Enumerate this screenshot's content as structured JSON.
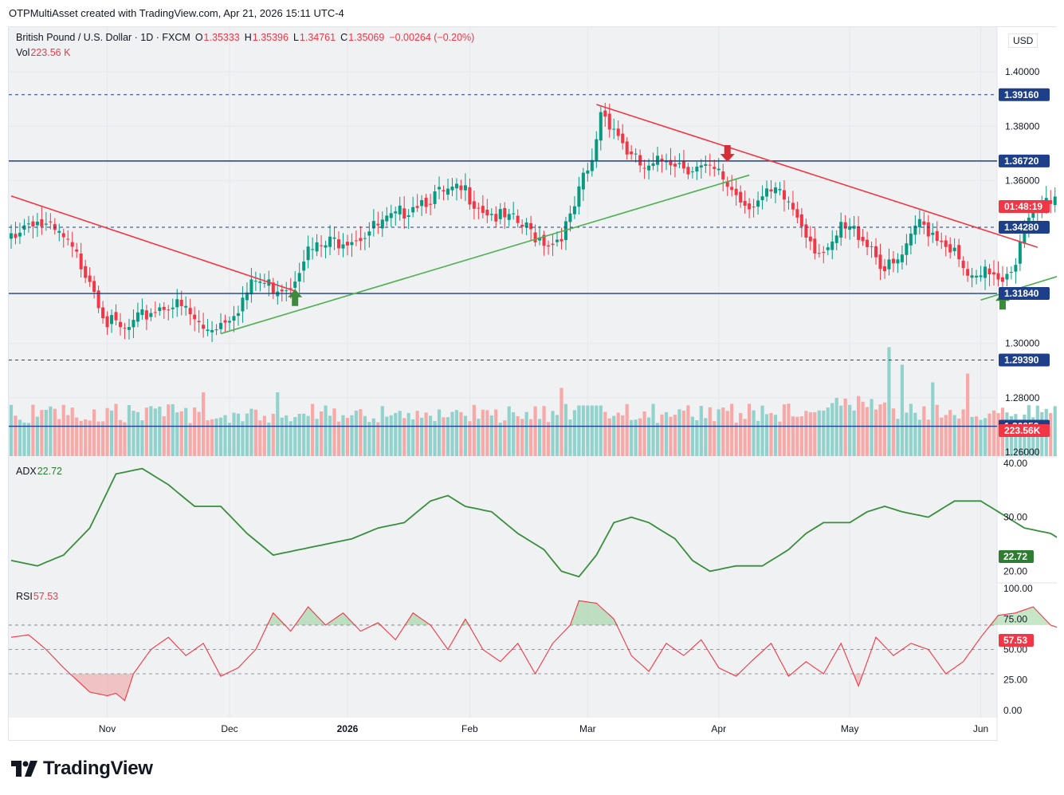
{
  "caption": "OTPMultiAsset created with TradingView.com, Apr 21, 2026 15:11 UTC-4",
  "brand": "TradingView",
  "legend": {
    "symbol": "British Pound / U.S. Dollar · 1D · FXCM",
    "open_label": "O",
    "open": "1.35333",
    "high_label": "H",
    "high": "1.35396",
    "low_label": "L",
    "low": "1.34761",
    "close_label": "C",
    "close": "1.35069",
    "change": "−0.00264 (−0.20%)",
    "vol_label": "Vol",
    "vol": "223.56 K",
    "adx_label": "ADX",
    "adx": "22.72",
    "rsi_label": "RSI",
    "rsi": "57.53"
  },
  "currency": "USD",
  "chart_data": {
    "type": "candlestick",
    "instrument": "British Pound / U.S. Dollar",
    "timeframe": "1D",
    "x_labels": [
      "Nov",
      "Dec",
      "2026",
      "Feb",
      "Mar",
      "Apr",
      "May",
      "Jun"
    ],
    "price_axis": {
      "ticks": [
        "1.40000",
        "1.38000",
        "1.36000",
        "1.30000",
        "1.28000",
        "1.26000"
      ],
      "ylim": [
        1.2585,
        1.4165
      ]
    },
    "horizontal_levels": [
      {
        "value": 1.3916,
        "label": "1.39160",
        "style": "dashed"
      },
      {
        "value": 1.3672,
        "label": "1.36720",
        "style": "solid"
      },
      {
        "value": 1.3428,
        "label": "1.34280",
        "style": "dashed"
      },
      {
        "value": 1.3184,
        "label": "1.31840",
        "style": "solid"
      },
      {
        "value": 1.2939,
        "label": "1.29390",
        "style": "dashed"
      },
      {
        "value": 1.2695,
        "label": "1.26950",
        "style": "solid"
      }
    ],
    "countdown_tag": "01:48:19",
    "countdown_value": 1.3507,
    "volume_tag": "223.56K",
    "trendlines": [
      {
        "color": "#f23645",
        "from": [
          0,
          1.3543
        ],
        "to": [
          65,
          1.3193
        ]
      },
      {
        "color": "#4caf50",
        "from": [
          48,
          1.3036
        ],
        "to": [
          169,
          1.362
        ]
      },
      {
        "color": "#f23645",
        "from": [
          134,
          1.388
        ],
        "to": [
          235,
          1.3354
        ]
      },
      {
        "color": "#4caf50",
        "from": [
          222,
          1.316
        ],
        "to": [
          302,
          1.3556
        ]
      }
    ],
    "arrows": [
      {
        "direction": "up",
        "index": 65,
        "value": 1.317
      },
      {
        "direction": "down",
        "index": 164,
        "value": 1.3698
      },
      {
        "direction": "up",
        "index": 227,
        "value": 1.3157
      }
    ],
    "adx": {
      "label": "ADX",
      "last": 22.72,
      "ylim": [
        18,
        41
      ],
      "ticks": [
        "40.00",
        "30.00",
        "20.00"
      ],
      "anchors": [
        [
          0,
          22
        ],
        [
          6,
          21
        ],
        [
          12,
          23
        ],
        [
          18,
          28
        ],
        [
          24,
          38
        ],
        [
          30,
          39
        ],
        [
          36,
          36
        ],
        [
          42,
          32
        ],
        [
          48,
          32
        ],
        [
          54,
          27
        ],
        [
          60,
          23
        ],
        [
          66,
          24
        ],
        [
          72,
          25
        ],
        [
          78,
          26
        ],
        [
          84,
          28
        ],
        [
          90,
          29
        ],
        [
          96,
          33
        ],
        [
          100,
          34
        ],
        [
          104,
          32
        ],
        [
          110,
          31
        ],
        [
          116,
          27
        ],
        [
          122,
          24
        ],
        [
          126,
          20
        ],
        [
          130,
          19
        ],
        [
          134,
          23
        ],
        [
          138,
          29
        ],
        [
          142,
          30
        ],
        [
          146,
          29
        ],
        [
          152,
          26
        ],
        [
          156,
          22
        ],
        [
          160,
          20
        ],
        [
          166,
          21
        ],
        [
          172,
          21
        ],
        [
          178,
          24
        ],
        [
          182,
          27
        ],
        [
          186,
          29
        ],
        [
          192,
          29
        ],
        [
          196,
          31
        ],
        [
          200,
          32
        ],
        [
          204,
          31
        ],
        [
          210,
          30
        ],
        [
          216,
          33
        ],
        [
          222,
          33
        ],
        [
          226,
          31
        ],
        [
          232,
          28
        ],
        [
          238,
          27
        ],
        [
          242,
          25
        ],
        [
          244,
          23
        ]
      ]
    },
    "rsi": {
      "label": "RSI",
      "last": 57.53,
      "ylim": [
        -6,
        104
      ],
      "ticks": [
        "100.00",
        "75.00",
        "50.00",
        "25.00",
        "0.00"
      ],
      "bands": [
        70,
        50,
        30
      ],
      "anchors": [
        [
          0,
          60
        ],
        [
          4,
          62
        ],
        [
          8,
          50
        ],
        [
          12,
          35
        ],
        [
          15,
          25
        ],
        [
          18,
          15
        ],
        [
          22,
          12
        ],
        [
          24,
          14
        ],
        [
          26,
          8
        ],
        [
          28,
          30
        ],
        [
          32,
          50
        ],
        [
          36,
          60
        ],
        [
          40,
          45
        ],
        [
          44,
          55
        ],
        [
          48,
          28
        ],
        [
          52,
          35
        ],
        [
          56,
          50
        ],
        [
          60,
          80
        ],
        [
          64,
          65
        ],
        [
          68,
          85
        ],
        [
          72,
          70
        ],
        [
          76,
          80
        ],
        [
          80,
          65
        ],
        [
          84,
          72
        ],
        [
          88,
          58
        ],
        [
          92,
          80
        ],
        [
          96,
          70
        ],
        [
          100,
          50
        ],
        [
          104,
          75
        ],
        [
          108,
          50
        ],
        [
          112,
          40
        ],
        [
          116,
          55
        ],
        [
          120,
          30
        ],
        [
          124,
          55
        ],
        [
          128,
          70
        ],
        [
          130,
          90
        ],
        [
          134,
          88
        ],
        [
          138,
          75
        ],
        [
          142,
          45
        ],
        [
          146,
          32
        ],
        [
          150,
          55
        ],
        [
          154,
          45
        ],
        [
          158,
          58
        ],
        [
          162,
          35
        ],
        [
          166,
          28
        ],
        [
          170,
          42
        ],
        [
          174,
          55
        ],
        [
          178,
          28
        ],
        [
          182,
          40
        ],
        [
          186,
          30
        ],
        [
          190,
          55
        ],
        [
          194,
          20
        ],
        [
          198,
          60
        ],
        [
          202,
          45
        ],
        [
          206,
          55
        ],
        [
          210,
          50
        ],
        [
          214,
          30
        ],
        [
          218,
          40
        ],
        [
          222,
          60
        ],
        [
          226,
          78
        ],
        [
          230,
          80
        ],
        [
          234,
          85
        ],
        [
          238,
          70
        ],
        [
          242,
          65
        ],
        [
          244,
          57.5
        ]
      ]
    }
  }
}
